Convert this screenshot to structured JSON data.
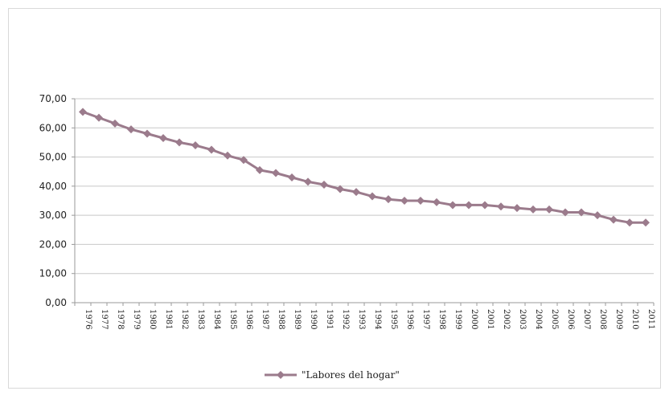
{
  "chart_data": {
    "type": "line",
    "title": "",
    "xlabel": "",
    "ylabel": "",
    "x": [
      "1976",
      "1977",
      "1978",
      "1979",
      "1980",
      "1981",
      "1982",
      "1983",
      "1984",
      "1985",
      "1986",
      "1987",
      "1988",
      "1989",
      "1990",
      "1991",
      "1992",
      "1993",
      "1994",
      "1995",
      "1996",
      "1997",
      "1998",
      "1999",
      "2000",
      "2001",
      "2002",
      "2003",
      "2004",
      "2005",
      "2006",
      "2007",
      "2008",
      "2009",
      "2010",
      "2011"
    ],
    "series": [
      {
        "name": "\"Labores del hogar\"",
        "color": "#9b7b8c",
        "values": [
          65.5,
          63.5,
          61.5,
          59.5,
          58.0,
          56.5,
          55.0,
          54.0,
          52.5,
          50.5,
          49.0,
          45.5,
          44.5,
          43.0,
          41.5,
          40.5,
          39.0,
          38.0,
          36.5,
          35.5,
          35.0,
          35.0,
          34.5,
          33.5,
          33.5,
          33.5,
          33.0,
          32.5,
          32.0,
          32.0,
          31.0,
          31.0,
          30.0,
          28.5,
          27.5,
          27.5
        ]
      }
    ],
    "yticks": [
      "0,00",
      "10,00",
      "20,00",
      "30,00",
      "40,00",
      "50,00",
      "60,00",
      "70,00"
    ],
    "ylim": [
      0,
      70
    ],
    "grid": true,
    "legend_position": "bottom"
  }
}
